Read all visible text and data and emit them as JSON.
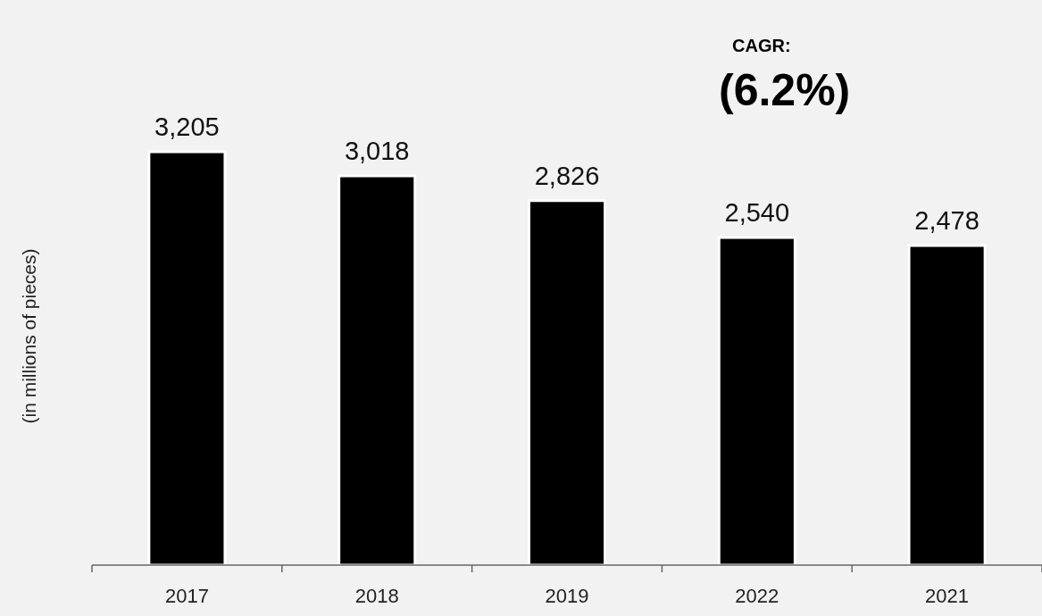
{
  "chart_data": {
    "type": "bar",
    "ylabel": "(in millions of pieces)",
    "categories": [
      "2017",
      "2018",
      "2019",
      "2022",
      "2021"
    ],
    "values": [
      3205,
      3018,
      2826,
      2540,
      2478
    ],
    "value_labels": [
      "3,205",
      "3,018",
      "2,826",
      "2,540",
      "2,478"
    ],
    "color": "#000000",
    "annotations": [
      "CAGR:",
      "(6.2%)"
    ]
  }
}
